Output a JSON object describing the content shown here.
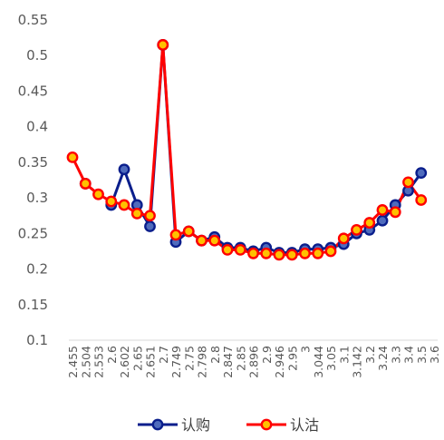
{
  "chart_data": {
    "type": "line",
    "categories": [
      "2.455",
      "2.504",
      "2.553",
      "2.6",
      "2.602",
      "2.65",
      "2.651",
      "2.7",
      "2.749",
      "2.75",
      "2.798",
      "2.8",
      "2.847",
      "2.85",
      "2.896",
      "2.9",
      "2.946",
      "2.95",
      "3",
      "3.044",
      "3.05",
      "3.1",
      "3.142",
      "3.2",
      "3.24",
      "3.3",
      "3.4",
      "3.5",
      "3.6"
    ],
    "xtick_labels": [
      "2.455",
      "2.504",
      "2.553",
      "2.6",
      "2.602",
      "2.65",
      "2.651",
      "2.7",
      "2.749",
      "2.75",
      "2.798",
      "2.8",
      "2.847",
      "2.85",
      "2.896",
      "2.9",
      "2.946",
      "2.95",
      "3",
      "3.044",
      "3.05",
      "3.1",
      "3.142",
      "3.2",
      "3.24",
      "3.3",
      "3.4",
      "3.5",
      "3.6"
    ],
    "series": [
      {
        "name": "认购",
        "color": "#0a1e8c",
        "values": [
          null,
          0.32,
          null,
          0.29,
          0.34,
          0.29,
          0.26,
          0.515,
          0.238,
          0.253,
          0.24,
          0.245,
          0.23,
          0.23,
          0.225,
          0.23,
          0.223,
          0.223,
          0.228,
          0.228,
          0.23,
          0.235,
          0.25,
          0.255,
          0.268,
          0.29,
          0.31,
          0.335,
          null
        ]
      },
      {
        "name": "认沽",
        "color": "#ff0000",
        "values": [
          0.357,
          0.32,
          0.305,
          0.295,
          0.29,
          0.278,
          0.275,
          0.515,
          0.248,
          0.253,
          0.24,
          0.24,
          0.227,
          0.227,
          0.222,
          0.222,
          0.22,
          0.22,
          0.222,
          0.222,
          0.225,
          0.243,
          0.255,
          0.265,
          0.283,
          0.28,
          0.322,
          0.297,
          null
        ]
      }
    ],
    "ylim": [
      0.1,
      0.55
    ],
    "yticks": [
      "0.1",
      "0.15",
      "0.2",
      "0.25",
      "0.3",
      "0.35",
      "0.4",
      "0.45",
      "0.5",
      "0.55"
    ],
    "title": "",
    "xlabel": "",
    "ylabel": "",
    "grid": false,
    "legend_position": "bottom"
  }
}
